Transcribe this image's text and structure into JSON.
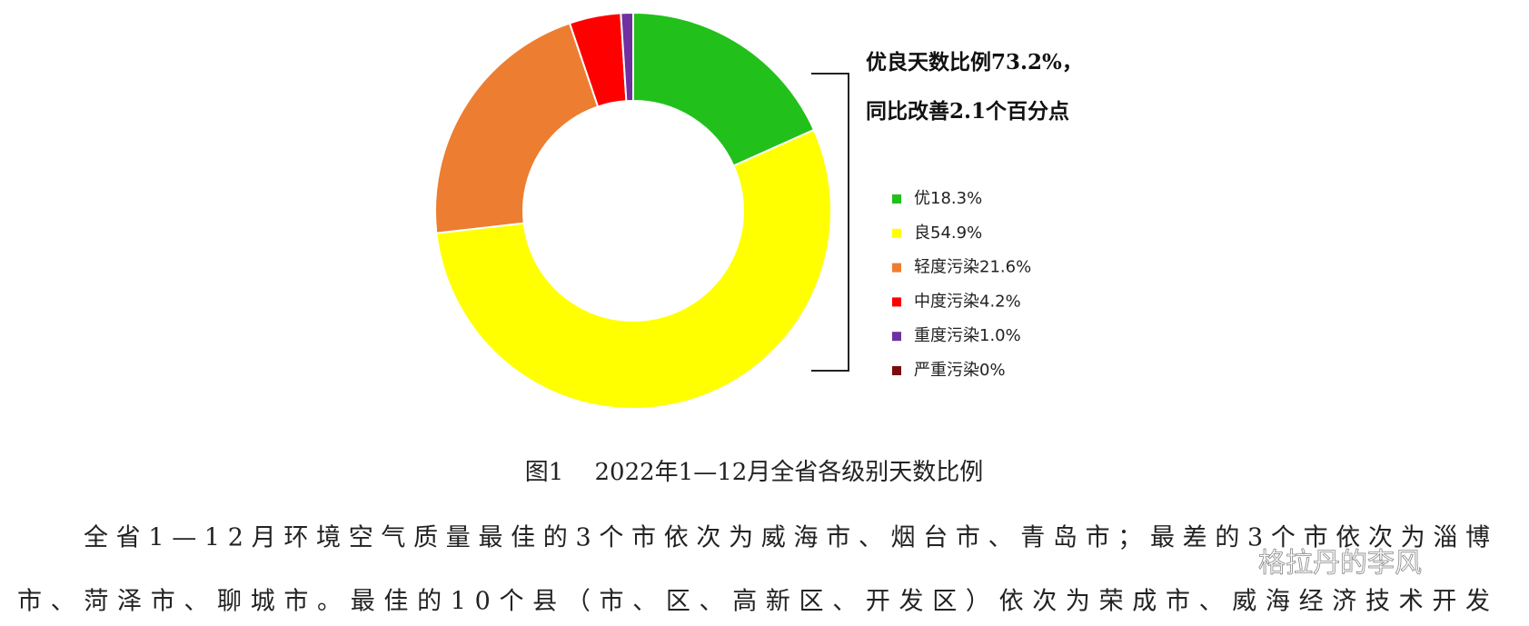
{
  "chart_data": {
    "type": "donut",
    "categories": [
      "优",
      "良",
      "轻度污染",
      "中度污染",
      "重度污染",
      "严重污染"
    ],
    "values": [
      18.3,
      54.9,
      21.6,
      4.2,
      1.0,
      0
    ],
    "value_labels": [
      "18.3%",
      "54.9%",
      "21.6%",
      "4.2%",
      "1.0%",
      "0%"
    ],
    "colors": [
      "#22c01a",
      "#ffff00",
      "#ed7d31",
      "#ff0000",
      "#7030a0",
      "#7b0c0c"
    ],
    "annotations": [
      "优良天数比例73.2%，",
      "同比改善2.1个百分点"
    ],
    "legend": "right"
  },
  "document": {
    "caption": "图1　 2022年1—12月全省各级别天数比例",
    "paragraph_lines": [
      "全省1—12月环境空气质量最佳的3个市依次为威海市、烟台市、青岛市；最差的3个市依次为淄博",
      "市、菏泽市、聊城市。最佳的10个县（市、区、高新区、开发区）依次为荣成市、威海经济技术开发"
    ],
    "watermark": "格拉丹的李风"
  }
}
